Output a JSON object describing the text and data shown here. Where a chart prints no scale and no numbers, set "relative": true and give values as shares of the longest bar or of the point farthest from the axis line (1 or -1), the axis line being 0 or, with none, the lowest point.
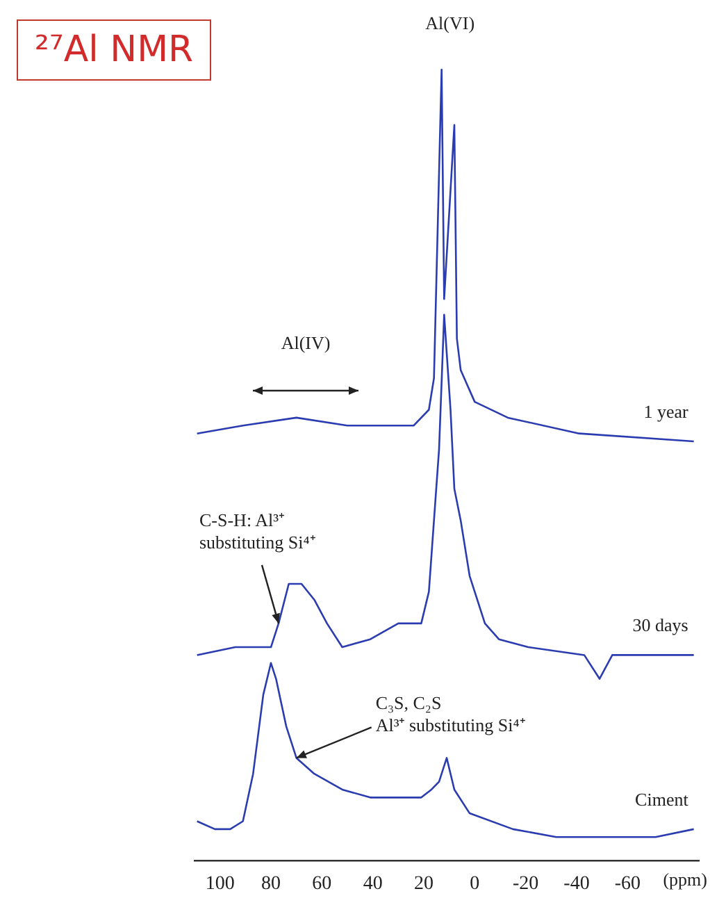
{
  "chart_data": {
    "type": "line",
    "title": "²⁷Al NMR",
    "xlabel": "(ppm)",
    "relative": true,
    "xlim": [
      110,
      -88
    ],
    "xticks": [
      100,
      80,
      60,
      40,
      20,
      0,
      -20,
      -40,
      -60
    ],
    "grid": false,
    "legend": false,
    "marker": "none",
    "line_style": "solid",
    "annotations": [
      {
        "text": "Al(VI)",
        "x": 13,
        "y": 1.0
      },
      {
        "text": "C-S-H: Al³⁺\nsubstituting Si⁴⁺",
        "x": 77,
        "y": 0.3
      },
      {
        "text": "C₃S, C₂S\nAl³⁺ substituting Si⁴⁺",
        "x": 70,
        "y": 0.13
      },
      "Al(IV)"
    ],
    "series": [
      {
        "name": "1 year",
        "color": "#2b3cb0",
        "x": [
          109,
          91,
          70,
          50,
          24,
          18,
          16,
          13,
          12,
          8,
          7,
          5.5,
          0,
          -13,
          -41,
          -86
        ],
        "values": [
          0.54,
          0.55,
          0.56,
          0.55,
          0.55,
          0.57,
          0.61,
          1.0,
          0.71,
          0.93,
          0.66,
          0.62,
          0.58,
          0.56,
          0.54,
          0.53
        ]
      },
      {
        "name": "30 days",
        "color": "#2b3cb0",
        "x": [
          109,
          94,
          80,
          77,
          73,
          68,
          63,
          58,
          52,
          41,
          30,
          21,
          18,
          16,
          14,
          12,
          9.5,
          8,
          5.5,
          2,
          -4,
          -9.5,
          -21,
          -43,
          -49,
          -54,
          -77,
          -86
        ],
        "values": [
          0.26,
          0.27,
          0.27,
          0.3,
          0.35,
          0.35,
          0.33,
          0.3,
          0.27,
          0.28,
          0.3,
          0.3,
          0.34,
          0.43,
          0.52,
          0.69,
          0.57,
          0.47,
          0.43,
          0.36,
          0.3,
          0.28,
          0.27,
          0.26,
          0.23,
          0.26,
          0.26,
          0.26
        ]
      },
      {
        "name": "Ciment",
        "color": "#2b3cb0",
        "x": [
          109,
          102,
          96,
          91,
          87,
          83,
          80,
          78,
          74,
          70,
          63,
          52,
          41,
          30,
          21,
          17,
          14,
          11,
          8,
          2,
          -15,
          -32,
          -54,
          -71,
          -86
        ],
        "values": [
          0.05,
          0.04,
          0.04,
          0.05,
          0.11,
          0.21,
          0.25,
          0.23,
          0.17,
          0.13,
          0.11,
          0.09,
          0.08,
          0.08,
          0.08,
          0.09,
          0.1,
          0.13,
          0.09,
          0.06,
          0.04,
          0.03,
          0.03,
          0.03,
          0.04
        ]
      }
    ]
  }
}
